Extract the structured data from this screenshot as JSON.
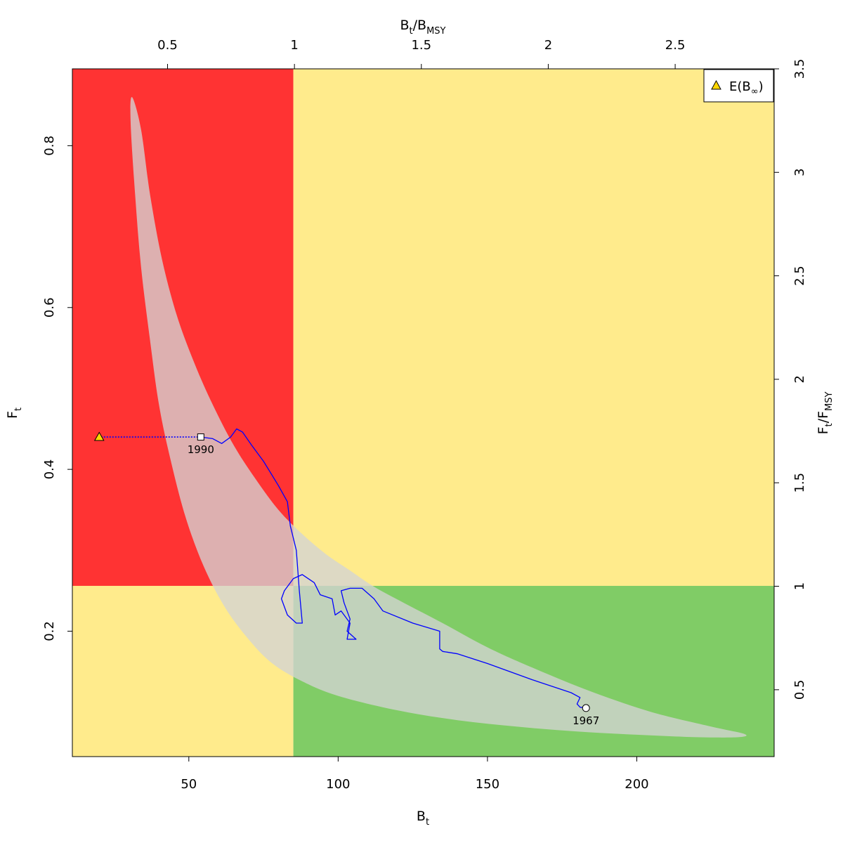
{
  "chart_data": {
    "type": "line",
    "axes": {
      "bottom": {
        "label": "B",
        "label_sub": "t",
        "range": [
          11,
          246
        ],
        "ticks": [
          50,
          100,
          150,
          200
        ]
      },
      "left": {
        "label": "F",
        "label_sub": "t",
        "range": [
          0.045,
          0.895
        ],
        "ticks": [
          0.2,
          0.4,
          0.6,
          0.8
        ]
      },
      "top": {
        "label": "B",
        "label_sub": "t",
        "label_mid": "/B",
        "label_sub2": "MSY",
        "range": [
          0.125,
          2.89
        ],
        "ticks": [
          0.5,
          1,
          1.5,
          2,
          2.5
        ],
        "tick_labels": [
          "0.5",
          "1",
          "1.5",
          "2",
          "2.5"
        ]
      },
      "right": {
        "label": "F",
        "label_sub": "t",
        "label_mid": "/F",
        "label_sub2": "MSY",
        "range": [
          0.177,
          3.5
        ],
        "ticks": [
          0.5,
          1,
          1.5,
          2,
          2.5,
          3,
          3.5
        ],
        "tick_labels": [
          "0.5",
          "1",
          "1.5",
          "2",
          "2.5",
          "3",
          "3.5"
        ]
      }
    },
    "reference": {
      "Bmsy": 85,
      "Fmsy": 0.256
    },
    "zone_colors": {
      "red": "#ff3333",
      "yellow": "#ffeb8c",
      "green": "#80cc66"
    },
    "confidence_region": {
      "color": "#d3d3d3",
      "outline": [
        [
          31,
          0.86
        ],
        [
          34,
          0.82
        ],
        [
          37,
          0.74
        ],
        [
          41,
          0.66
        ],
        [
          46,
          0.59
        ],
        [
          52,
          0.53
        ],
        [
          58,
          0.48
        ],
        [
          65,
          0.43
        ],
        [
          72,
          0.39
        ],
        [
          80,
          0.35
        ],
        [
          88,
          0.32
        ],
        [
          96,
          0.295
        ],
        [
          104,
          0.275
        ],
        [
          112,
          0.255
        ],
        [
          122,
          0.235
        ],
        [
          135,
          0.21
        ],
        [
          150,
          0.18
        ],
        [
          165,
          0.155
        ],
        [
          185,
          0.125
        ],
        [
          205,
          0.1
        ],
        [
          225,
          0.082
        ],
        [
          236,
          0.073
        ],
        [
          234,
          0.069
        ],
        [
          220,
          0.069
        ],
        [
          200,
          0.072
        ],
        [
          180,
          0.076
        ],
        [
          160,
          0.082
        ],
        [
          140,
          0.09
        ],
        [
          120,
          0.102
        ],
        [
          100,
          0.12
        ],
        [
          88,
          0.138
        ],
        [
          78,
          0.16
        ],
        [
          70,
          0.19
        ],
        [
          62,
          0.23
        ],
        [
          55,
          0.28
        ],
        [
          49,
          0.34
        ],
        [
          44,
          0.41
        ],
        [
          40,
          0.48
        ],
        [
          37,
          0.56
        ],
        [
          34,
          0.65
        ],
        [
          32,
          0.74
        ],
        [
          30.5,
          0.83
        ]
      ]
    },
    "series": [
      {
        "color": "#0000ff",
        "points": [
          [
            183,
            0.105
          ],
          [
            181,
            0.106
          ],
          [
            180,
            0.11
          ],
          [
            181,
            0.118
          ],
          [
            178,
            0.124
          ],
          [
            165,
            0.14
          ],
          [
            150,
            0.16
          ],
          [
            140,
            0.172
          ],
          [
            135,
            0.175
          ],
          [
            134,
            0.178
          ],
          [
            134,
            0.2
          ],
          [
            125,
            0.21
          ],
          [
            115,
            0.225
          ],
          [
            112,
            0.24
          ],
          [
            108,
            0.253
          ],
          [
            104,
            0.253
          ],
          [
            101,
            0.25
          ],
          [
            102,
            0.235
          ],
          [
            104,
            0.215
          ],
          [
            103,
            0.2
          ],
          [
            106,
            0.19
          ],
          [
            103,
            0.19
          ],
          [
            104,
            0.21
          ],
          [
            101,
            0.225
          ],
          [
            99,
            0.22
          ],
          [
            98,
            0.24
          ],
          [
            94,
            0.245
          ],
          [
            92,
            0.26
          ],
          [
            88,
            0.27
          ],
          [
            85,
            0.265
          ],
          [
            82,
            0.25
          ],
          [
            81,
            0.24
          ],
          [
            83,
            0.22
          ],
          [
            86,
            0.21
          ],
          [
            88,
            0.21
          ],
          [
            87,
            0.25
          ],
          [
            86,
            0.3
          ],
          [
            84,
            0.33
          ],
          [
            83,
            0.36
          ],
          [
            80,
            0.38
          ],
          [
            75,
            0.41
          ],
          [
            71,
            0.43
          ],
          [
            68,
            0.446
          ],
          [
            66,
            0.45
          ],
          [
            64,
            0.44
          ],
          [
            61,
            0.432
          ],
          [
            58,
            0.438
          ],
          [
            54,
            0.44
          ]
        ]
      }
    ],
    "projection": {
      "from": [
        54,
        0.44
      ],
      "to": [
        20,
        0.44
      ],
      "color": "#0000ff",
      "style": "dotted"
    },
    "markers": [
      {
        "label": "1990",
        "x": 54,
        "y": 0.44,
        "shape": "square"
      },
      {
        "label": "1967",
        "x": 183,
        "y": 0.105,
        "shape": "circle"
      },
      {
        "label": "",
        "x": 20,
        "y": 0.44,
        "shape": "triangle",
        "color": "#ffd700"
      }
    ],
    "legend": {
      "label": "E(B",
      "label_sub": "∞",
      "label_end": ")",
      "placement": "top-right",
      "marker": "triangle",
      "marker_color": "#ffd700"
    }
  }
}
